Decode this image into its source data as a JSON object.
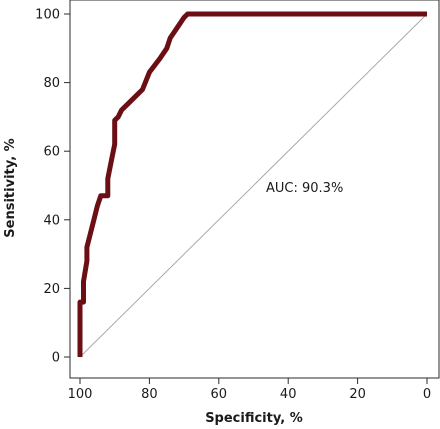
{
  "chart_data": {
    "type": "line",
    "title": "",
    "xlabel": "Specificity, %",
    "ylabel": "Sensitivity, %",
    "x_reversed": true,
    "xlim": [
      100,
      0
    ],
    "ylim": [
      0,
      100
    ],
    "x_ticks": [
      100,
      80,
      60,
      40,
      20,
      0
    ],
    "y_ticks": [
      0,
      20,
      40,
      60,
      80,
      100
    ],
    "x_tick_labels": [
      "100",
      "80",
      "60",
      "40",
      "20",
      "0"
    ],
    "y_tick_labels": [
      "0",
      "20",
      "40",
      "60",
      "80",
      "100"
    ],
    "grid": false,
    "annotation": "AUC: 90.3%",
    "series": [
      {
        "color": "#6b0f14",
        "x": [
          100,
          100,
          100,
          99,
          99,
          98,
          98,
          97,
          96,
          95,
          94,
          92,
          92,
          91,
          90,
          90,
          89,
          88,
          86,
          82,
          80,
          77,
          75,
          74,
          72,
          70,
          69,
          68,
          0
        ],
        "y": [
          0,
          15,
          16,
          16,
          22,
          28,
          32,
          36,
          40,
          44,
          47,
          47,
          52,
          57,
          62,
          69,
          70,
          72,
          74,
          78,
          83,
          87,
          90,
          93,
          96,
          99,
          100,
          100,
          100
        ]
      }
    ],
    "reference_line": {
      "color": "#a9a9a9",
      "x": [
        100,
        0
      ],
      "y": [
        0,
        100
      ]
    }
  }
}
